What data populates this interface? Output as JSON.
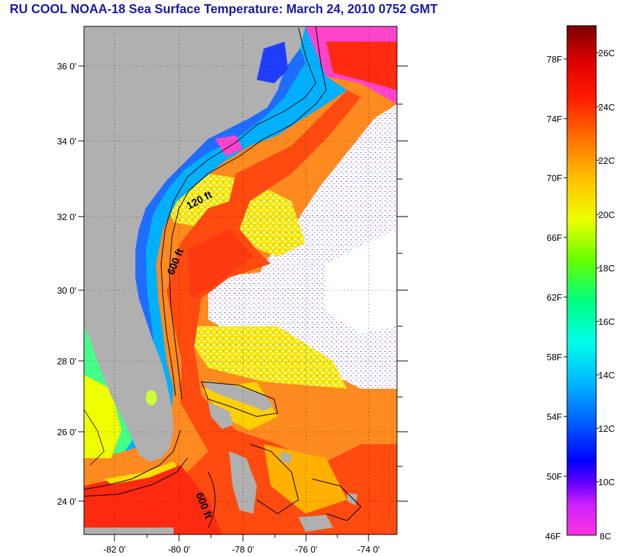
{
  "title": "RU COOL  NOAA-18  Sea Surface Temperature:  March 24, 2010 0752 GMT",
  "map": {
    "lat_labels": [
      "36 0'",
      "34 0'",
      "32 0'",
      "30 0'",
      "28 0'",
      "26 0'",
      "24 0'"
    ],
    "lon_labels": [
      "-82 0'",
      "-80 0'",
      "-78 0'",
      "-76 0'",
      "-74 0'"
    ],
    "lat_range": [
      23,
      37
    ],
    "lon_range": [
      -83,
      -73
    ],
    "contours": [
      "120 ft",
      "600 ft",
      "600 ft"
    ],
    "colors": {
      "land": "#b0b0b0",
      "cloud": "#ffffff",
      "gulf_stream": "#ff4a10"
    }
  },
  "colorbar": {
    "f_labels": [
      "78F",
      "74F",
      "70F",
      "66F",
      "62F",
      "58F",
      "54F",
      "50F",
      "46F"
    ],
    "c_labels": [
      "26C",
      "24C",
      "22C",
      "20C",
      "18C",
      "16C",
      "14C",
      "12C",
      "10C",
      "8C"
    ],
    "range_c": [
      8,
      27
    ]
  }
}
